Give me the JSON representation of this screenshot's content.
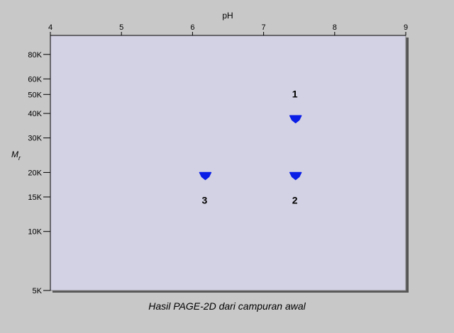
{
  "chart_data": {
    "type": "scatter",
    "title": "",
    "caption": "Hasil PAGE-2D dari campuran awal",
    "xlabel": "pH",
    "ylabel": "M",
    "ylabel_sub": "r",
    "x_axis_position": "top",
    "xlim": [
      4,
      9
    ],
    "ylim": [
      5000,
      100000
    ],
    "yscale": "log",
    "x_ticks": [
      {
        "value": 4,
        "label": "4"
      },
      {
        "value": 5,
        "label": "5"
      },
      {
        "value": 6,
        "label": "6"
      },
      {
        "value": 7,
        "label": "7"
      },
      {
        "value": 8,
        "label": "8"
      },
      {
        "value": 9,
        "label": "9"
      }
    ],
    "y_ticks": [
      {
        "value": 80000,
        "label": "80K"
      },
      {
        "value": 60000,
        "label": "60K"
      },
      {
        "value": 50000,
        "label": "50K"
      },
      {
        "value": 40000,
        "label": "40K"
      },
      {
        "value": 30000,
        "label": "30K"
      },
      {
        "value": 20000,
        "label": "20K"
      },
      {
        "value": 15000,
        "label": "15K"
      },
      {
        "value": 10000,
        "label": "10K"
      },
      {
        "value": 5000,
        "label": "5K"
      }
    ],
    "points": [
      {
        "label": "1",
        "x": 7.45,
        "y": 38000,
        "label_position": "above"
      },
      {
        "label": "2",
        "x": 7.45,
        "y": 19500,
        "label_position": "below"
      },
      {
        "label": "3",
        "x": 6.18,
        "y": 19500,
        "label_position": "below"
      }
    ],
    "grid": false,
    "colors": {
      "background": "#c8c8c8",
      "plot_area": "#d3d2e4",
      "marker": "#0a1ee6",
      "frame_shadow": "#555555"
    }
  }
}
